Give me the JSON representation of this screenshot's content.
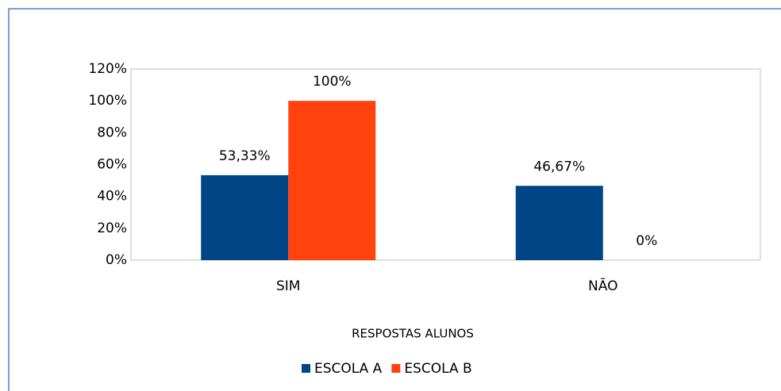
{
  "chart_data": {
    "type": "bar",
    "categories": [
      "SIM",
      "NÃO"
    ],
    "series": [
      {
        "name": "ESCOLA A",
        "color": "#004586",
        "values": [
          53.33,
          46.67
        ],
        "value_labels": [
          "53,33%",
          "46,67%"
        ]
      },
      {
        "name": "ESCOLA B",
        "color": "#ff420e",
        "values": [
          100,
          0
        ],
        "value_labels": [
          "100%",
          "0%"
        ]
      }
    ],
    "x_label": "RESPOSTAS ALUNOS",
    "ylim": [
      0,
      120
    ],
    "yticks": [
      {
        "value": 0,
        "label": "0%"
      },
      {
        "value": 20,
        "label": "20%"
      },
      {
        "value": 40,
        "label": "40%"
      },
      {
        "value": 60,
        "label": "60%"
      },
      {
        "value": 80,
        "label": "80%"
      },
      {
        "value": 100,
        "label": "100%"
      },
      {
        "value": 120,
        "label": "120%"
      }
    ],
    "grid": false,
    "legend": "bottom"
  }
}
